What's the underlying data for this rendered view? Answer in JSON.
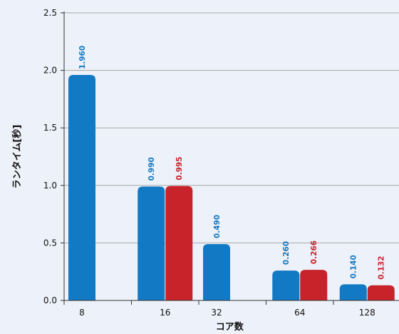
{
  "chart_data": {
    "type": "bar",
    "title": "",
    "xlabel": "コア数",
    "ylabel": "ランタイム[秒]",
    "ylim": [
      0,
      2.5
    ],
    "yticks": [
      "0.0",
      "0.5",
      "1.0",
      "1.5",
      "2.0",
      "2.5"
    ],
    "grid": true,
    "categories": [
      "8",
      "16",
      "32",
      "64",
      "128"
    ],
    "series": [
      {
        "color": "#1279c4",
        "values": [
          1.96,
          0.99,
          0.49,
          0.26,
          0.14
        ],
        "labels": [
          "1.960",
          "0.990",
          "0.490",
          "0.260",
          "0.140"
        ]
      },
      {
        "color": "#c8232b",
        "values": [
          null,
          0.995,
          null,
          0.266,
          0.132
        ],
        "labels": [
          null,
          "0.995",
          null,
          "0.266",
          "0.132"
        ]
      }
    ]
  },
  "colors": {
    "background": "#edf1f9",
    "grid": "#a9a9a9",
    "axis": "#333333"
  }
}
